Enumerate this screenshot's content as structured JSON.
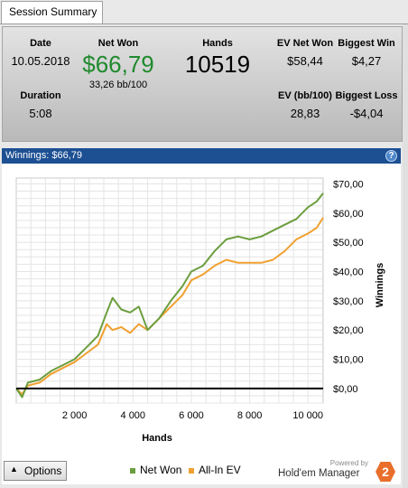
{
  "tab": {
    "label": "Session Summary"
  },
  "summary": {
    "date_label": "Date",
    "date": "10.05.2018",
    "duration_label": "Duration",
    "duration": "5:08",
    "netwon_label": "Net Won",
    "netwon": "$66,79",
    "bb100": "33,26 bb/100",
    "hands_label": "Hands",
    "hands": "10519",
    "ev_netwon_label": "EV Net Won",
    "ev_netwon": "$58,44",
    "ev_bb_label": "EV (bb/100)",
    "ev_bb": "28,83",
    "biggest_win_label": "Biggest Win",
    "biggest_win": "$4,27",
    "biggest_loss_label": "Biggest Loss",
    "biggest_loss": "-$4,04",
    "netwon_color": "#208a2e"
  },
  "panel": {
    "title": "Winnings: $66,79",
    "help_icon": "?"
  },
  "chart_data": {
    "type": "line",
    "xlabel": "Hands",
    "ylabel": "Winnings",
    "xticks": [
      "2 000",
      "4 000",
      "6 000",
      "8 000",
      "10 000"
    ],
    "xtick_values": [
      2000,
      4000,
      6000,
      8000,
      10000
    ],
    "yticks": [
      "$70,00",
      "$60,00",
      "$50,00",
      "$40,00",
      "$30,00",
      "$20,00",
      "$10,00",
      "$0,00"
    ],
    "ytick_values": [
      70,
      60,
      50,
      40,
      30,
      20,
      10,
      0
    ],
    "xlim": [
      0,
      10519
    ],
    "ylim": [
      -5,
      72
    ],
    "grid": true,
    "series": [
      {
        "name": "Net Won",
        "color": "#6b9e3e",
        "x": [
          0,
          200,
          400,
          800,
          1200,
          1600,
          2000,
          2400,
          2800,
          3100,
          3300,
          3600,
          3900,
          4200,
          4500,
          4900,
          5300,
          5700,
          6000,
          6400,
          6800,
          7200,
          7600,
          8000,
          8400,
          8800,
          9200,
          9600,
          10000,
          10300,
          10519
        ],
        "y": [
          0,
          -3,
          2,
          3,
          6,
          8,
          10,
          14,
          18,
          26,
          31,
          27,
          26,
          28,
          20,
          24,
          30,
          35,
          40,
          42,
          47,
          51,
          52,
          51,
          52,
          54,
          56,
          58,
          62,
          64,
          66.79
        ]
      },
      {
        "name": "All-In EV",
        "color": "#f0a030",
        "x": [
          0,
          200,
          400,
          800,
          1200,
          1600,
          2000,
          2400,
          2800,
          3100,
          3300,
          3600,
          3900,
          4200,
          4500,
          4900,
          5300,
          5700,
          6000,
          6400,
          6800,
          7200,
          7600,
          8000,
          8400,
          8800,
          9200,
          9600,
          10000,
          10300,
          10519
        ],
        "y": [
          0,
          -2,
          1,
          2,
          5,
          7,
          9,
          12,
          15,
          22,
          20,
          21,
          19,
          22,
          20,
          24,
          28,
          32,
          37,
          39,
          42,
          44,
          43,
          43,
          43,
          44,
          47,
          51,
          53,
          55,
          58.44
        ]
      }
    ]
  },
  "footer": {
    "options_label": "Options",
    "legend_netwon": "Net Won",
    "legend_allin": "All-In EV",
    "powered_by": "Powered by",
    "brand_name": "Hold'em Manager",
    "brand_logo": "2"
  }
}
